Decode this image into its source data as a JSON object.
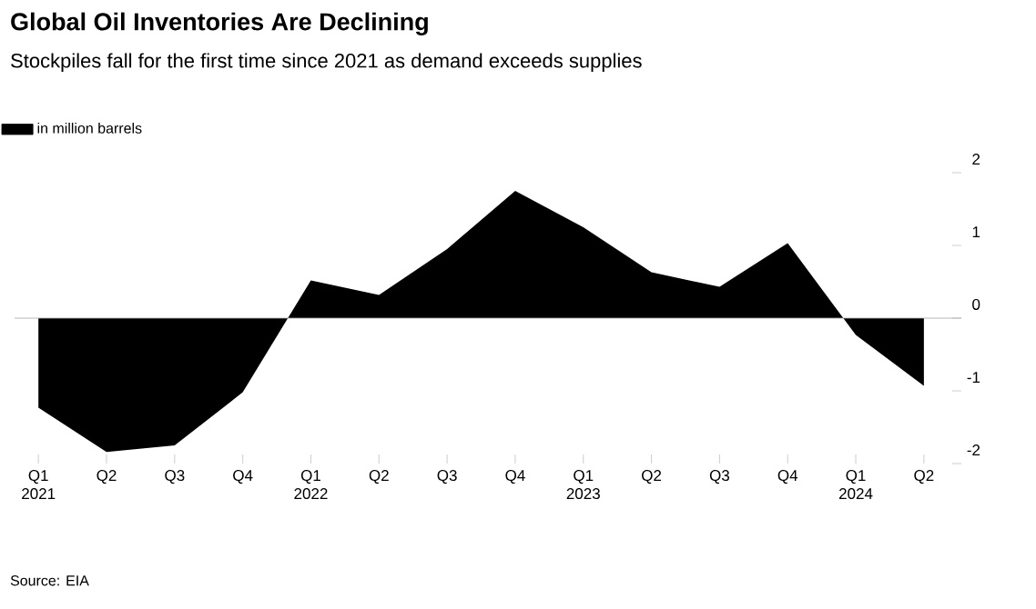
{
  "chart_data": {
    "type": "area",
    "title": "Global Oil Inventories Are Declining",
    "subtitle": "Stockpiles fall for the first time since 2021 as demand exceeds supplies",
    "categories": [
      "Q1 2021",
      "Q2",
      "Q3",
      "Q4",
      "Q1 2022",
      "Q2",
      "Q3",
      "Q4",
      "Q1 2023",
      "Q2",
      "Q3",
      "Q4",
      "Q1 2024",
      "Q2"
    ],
    "series": [
      {
        "name": "in million barrels",
        "color": "#000000",
        "values": [
          -1.23,
          -1.84,
          -1.75,
          -1.02,
          0.52,
          0.32,
          0.95,
          1.75,
          1.25,
          0.63,
          0.43,
          1.03,
          -0.23,
          -0.93
        ]
      }
    ],
    "ylim": [
      -2,
      2
    ],
    "yticks": [
      -2,
      -1,
      0,
      1,
      2
    ],
    "legend": "top left",
    "annotations": [
      "Source: EIA"
    ]
  }
}
